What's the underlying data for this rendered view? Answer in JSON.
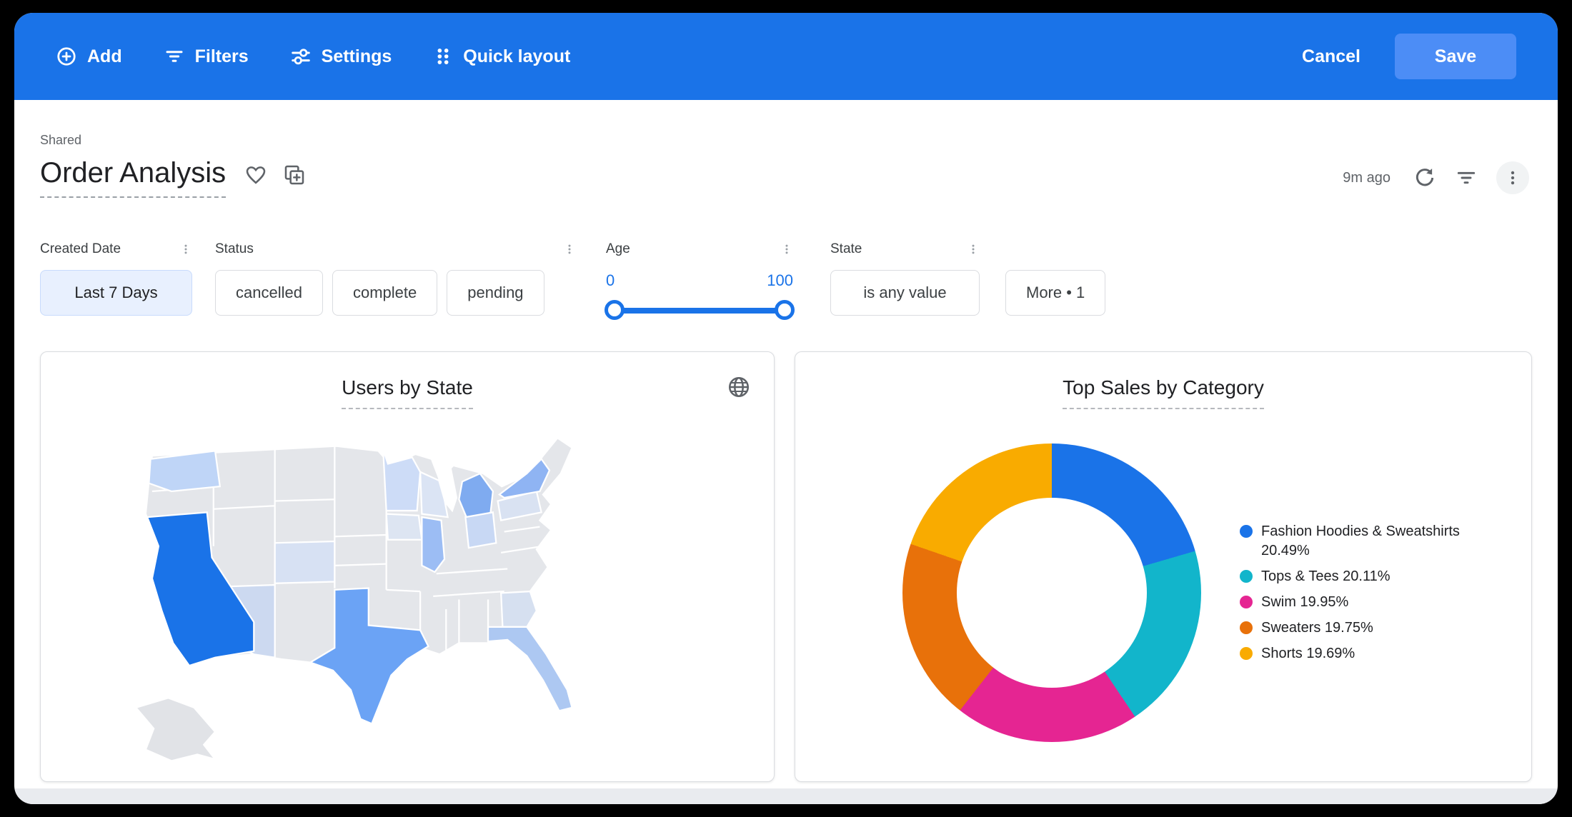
{
  "colors": {
    "toolbar_blue": "#1a73e8",
    "save_button_blue": "#4c8df6",
    "primary_blue": "#1a73e8",
    "active_chip_bg": "#e8f0fe",
    "secondary_text": "#5f6368"
  },
  "toolbar": {
    "add_label": "Add",
    "filters_label": "Filters",
    "settings_label": "Settings",
    "quick_layout_label": "Quick layout",
    "cancel_label": "Cancel",
    "save_label": "Save"
  },
  "header": {
    "breadcrumb": "Shared",
    "title": "Order Analysis",
    "last_updated": "9m ago"
  },
  "filter_bar": {
    "created_date": {
      "label": "Created Date",
      "value": "Last 7 Days"
    },
    "status": {
      "label": "Status",
      "options": [
        "cancelled",
        "complete",
        "pending"
      ]
    },
    "age": {
      "label": "Age",
      "min": "0",
      "max": "100"
    },
    "state": {
      "label": "State",
      "value": "is any value"
    },
    "more": {
      "label": "More • 1"
    }
  },
  "chart_data": [
    {
      "type": "heatmap",
      "subtype": "choropleth_map",
      "title": "Users by State",
      "region": "United States",
      "value_labels_visible": false,
      "base_color": "#e4e6ea",
      "state_colors": {
        "CA": "#1a73e8",
        "TX": "#6ba3f5",
        "NY": "#8fb4f3",
        "MI": "#7fabf0",
        "IL": "#9cbdf4",
        "FL": "#adc8f2",
        "WA": "#bfd5f7",
        "MN": "#cddcf7",
        "OH": "#c8d8f4",
        "AZ": "#ccd9f0",
        "PA": "#d9e2f2",
        "GA": "#d6e0f0",
        "WI": "#dbe4f4",
        "IA": "#dde5f2",
        "CO": "#d7e1f3",
        "AK": "#e1e3e7"
      }
    },
    {
      "type": "pie",
      "subtype": "donut",
      "title": "Top Sales by Category",
      "legend_position": "right",
      "series": [
        {
          "label": "Fashion Hoodies & Sweatshirts",
          "value": 20.49,
          "color": "#1a73e8"
        },
        {
          "label": "Tops & Tees",
          "value": 20.11,
          "color": "#12b5cb"
        },
        {
          "label": "Swim",
          "value": 19.95,
          "color": "#e52592"
        },
        {
          "label": "Sweaters",
          "value": 19.75,
          "color": "#e8710a"
        },
        {
          "label": "Shorts",
          "value": 19.69,
          "color": "#f9ab00"
        }
      ]
    }
  ]
}
